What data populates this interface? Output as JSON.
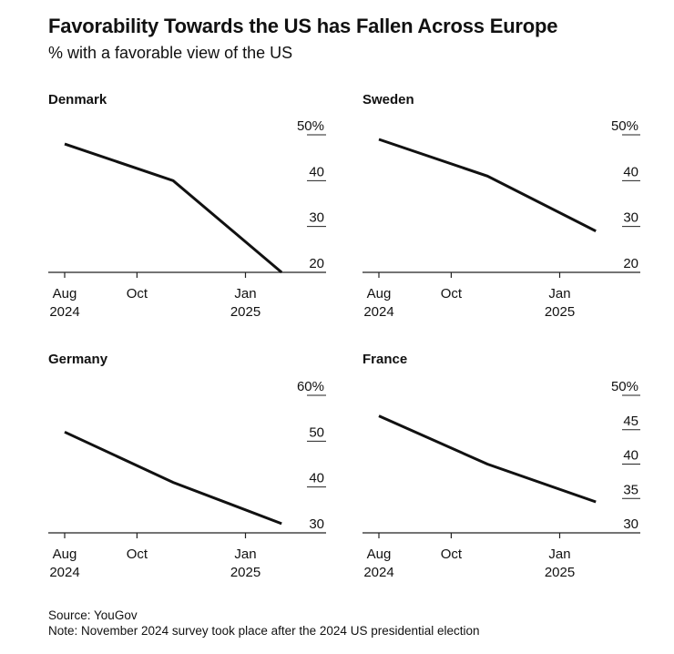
{
  "title": "Favorability Towards the US has Fallen Across Europe",
  "subtitle": "% with a favorable view of the US",
  "source": "Source: YouGov",
  "note": "Note: November 2024 survey took place after the 2024 US presidential election",
  "chart_data": [
    {
      "type": "line",
      "title": "Denmark",
      "x_ticks": [
        {
          "value": 0,
          "label": [
            "Aug",
            "2024"
          ]
        },
        {
          "value": 2,
          "label": [
            "Oct",
            ""
          ]
        },
        {
          "value": 5,
          "label": [
            "Jan",
            "2025"
          ]
        }
      ],
      "x": [
        0,
        3,
        6
      ],
      "x_labels": [
        "Aug 2024",
        "Nov 2024",
        "Feb 2025"
      ],
      "values": [
        48,
        40,
        20
      ],
      "ylim": [
        20,
        50
      ],
      "y_ticks": [
        {
          "value": 50,
          "label": "50%"
        },
        {
          "value": 40,
          "label": "40"
        },
        {
          "value": 30,
          "label": "30"
        },
        {
          "value": 20,
          "label": "20"
        }
      ]
    },
    {
      "type": "line",
      "title": "Sweden",
      "x_ticks": [
        {
          "value": 0,
          "label": [
            "Aug",
            "2024"
          ]
        },
        {
          "value": 2,
          "label": [
            "Oct",
            ""
          ]
        },
        {
          "value": 5,
          "label": [
            "Jan",
            "2025"
          ]
        }
      ],
      "x": [
        0,
        3,
        6
      ],
      "x_labels": [
        "Aug 2024",
        "Nov 2024",
        "Feb 2025"
      ],
      "values": [
        49,
        41,
        29
      ],
      "ylim": [
        20,
        50
      ],
      "y_ticks": [
        {
          "value": 50,
          "label": "50%"
        },
        {
          "value": 40,
          "label": "40"
        },
        {
          "value": 30,
          "label": "30"
        },
        {
          "value": 20,
          "label": "20"
        }
      ]
    },
    {
      "type": "line",
      "title": "Germany",
      "x_ticks": [
        {
          "value": 0,
          "label": [
            "Aug",
            "2024"
          ]
        },
        {
          "value": 2,
          "label": [
            "Oct",
            ""
          ]
        },
        {
          "value": 5,
          "label": [
            "Jan",
            "2025"
          ]
        }
      ],
      "x": [
        0,
        3,
        6
      ],
      "x_labels": [
        "Aug 2024",
        "Nov 2024",
        "Feb 2025"
      ],
      "values": [
        52,
        41,
        32
      ],
      "ylim": [
        30,
        60
      ],
      "y_ticks": [
        {
          "value": 60,
          "label": "60%"
        },
        {
          "value": 50,
          "label": "50"
        },
        {
          "value": 40,
          "label": "40"
        },
        {
          "value": 30,
          "label": "30"
        }
      ]
    },
    {
      "type": "line",
      "title": "France",
      "x_ticks": [
        {
          "value": 0,
          "label": [
            "Aug",
            "2024"
          ]
        },
        {
          "value": 2,
          "label": [
            "Oct",
            ""
          ]
        },
        {
          "value": 5,
          "label": [
            "Jan",
            "2025"
          ]
        }
      ],
      "x": [
        0,
        3,
        6
      ],
      "x_labels": [
        "Aug 2024",
        "Nov 2024",
        "Feb 2025"
      ],
      "values": [
        47,
        40,
        34.5
      ],
      "ylim": [
        30,
        50
      ],
      "y_ticks": [
        {
          "value": 50,
          "label": "50%"
        },
        {
          "value": 45,
          "label": "45"
        },
        {
          "value": 40,
          "label": "40"
        },
        {
          "value": 35,
          "label": "35"
        },
        {
          "value": 30,
          "label": "30"
        }
      ]
    }
  ]
}
